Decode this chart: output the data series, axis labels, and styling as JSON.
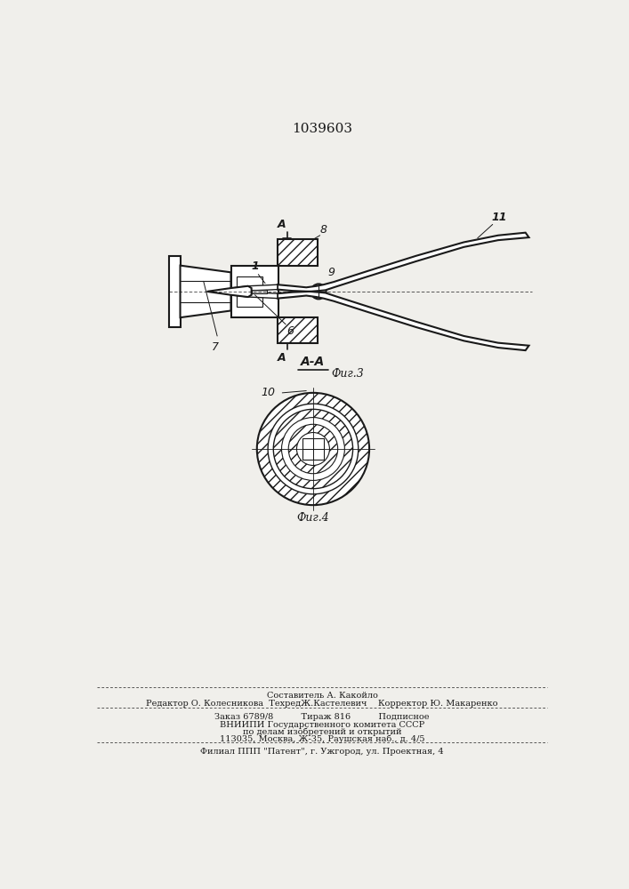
{
  "title": "1039603",
  "fig3_label": "Фиг.3",
  "fig4_label": "Фиг.4",
  "section_label": "A-A",
  "bg_color": "#f0efeb",
  "line_color": "#1a1a1a",
  "font_size_title": 11,
  "font_size_label": 9,
  "font_size_number": 8,
  "footer_line1": "Составитель А. Какойло",
  "footer_line2": "Редактор О. Колесникова  ТехредЖ.Кастелевич    Корректор Ю. Макаренко",
  "footer_line3": "Заказ 6789/8          Тираж 816          Подписное",
  "footer_line4": "ВНИИПИ Государственного комитета СССР",
  "footer_line5": "по делам изобретений и открытий",
  "footer_line6": "113035, Москва, Ж-35, Раушская наб., д. 4/5",
  "footer_line7": "Филиал ППП \"Патент\", г. Ужгород, ул. Проектная, 4"
}
